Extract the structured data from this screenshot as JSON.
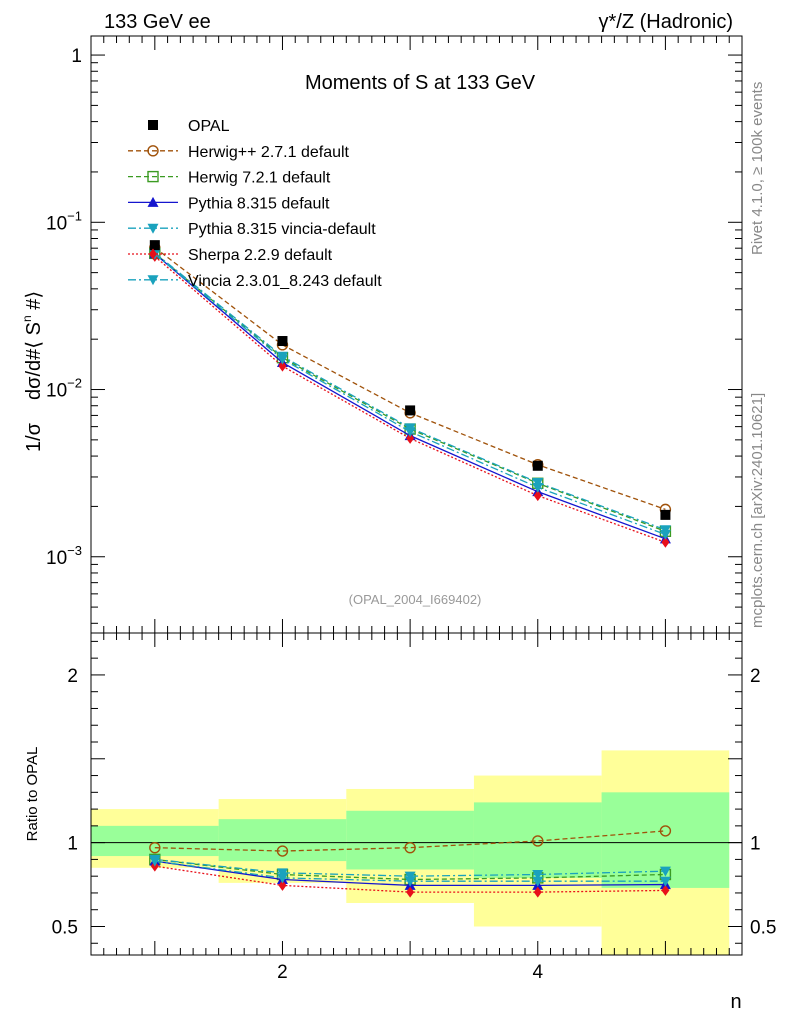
{
  "chart_data": {
    "type": "line",
    "header": {
      "left": "133 GeV ee",
      "right": "γ*/Z (Hadronic)"
    },
    "title": "Moments of S at 133 GeV",
    "side_labels": {
      "rivet": "Rivet 4.1.0, ≥ 100k events",
      "mcplots": "mcplots.cern.ch [arXiv:2401.10621]"
    },
    "analysis_id": "(OPAL_2004_I669402)",
    "main": {
      "ylabel": {
        "frac": "1/σ",
        "rest": "dσ/d#⟨ S",
        "sup": "n",
        "end": " #⟩"
      },
      "yscale": "log",
      "ylim": [
        0.00035,
        1.3
      ],
      "ytick_labels": [
        {
          "v": 1,
          "base": "1",
          "exp": ""
        },
        {
          "v": 0.1,
          "base": "10",
          "exp": "−1"
        },
        {
          "v": 0.01,
          "base": "10",
          "exp": "−2"
        },
        {
          "v": 0.001,
          "base": "10",
          "exp": "−3"
        }
      ]
    },
    "ratio": {
      "ylabel": "Ratio to OPAL",
      "ylim": [
        0.33,
        2.25
      ],
      "ytick_labels": [
        "2",
        "1",
        "0.5"
      ],
      "ytick_values": [
        2,
        1,
        0.5
      ],
      "band_outer": [
        {
          "x0": 0.5,
          "x1": 1.5,
          "lo": 0.85,
          "hi": 1.2
        },
        {
          "x0": 1.5,
          "x1": 2.5,
          "lo": 0.76,
          "hi": 1.26
        },
        {
          "x0": 2.5,
          "x1": 3.5,
          "lo": 0.64,
          "hi": 1.32
        },
        {
          "x0": 3.5,
          "x1": 4.5,
          "lo": 0.5,
          "hi": 1.4
        },
        {
          "x0": 4.5,
          "x1": 5.5,
          "lo": 0.33,
          "hi": 1.55
        }
      ],
      "band_inner": [
        {
          "x0": 0.5,
          "x1": 1.5,
          "lo": 0.92,
          "hi": 1.1
        },
        {
          "x0": 1.5,
          "x1": 2.5,
          "lo": 0.89,
          "hi": 1.14
        },
        {
          "x0": 2.5,
          "x1": 3.5,
          "lo": 0.84,
          "hi": 1.19
        },
        {
          "x0": 3.5,
          "x1": 4.5,
          "lo": 0.79,
          "hi": 1.24
        },
        {
          "x0": 4.5,
          "x1": 5.5,
          "lo": 0.73,
          "hi": 1.3
        }
      ]
    },
    "xlabel": "n",
    "xlim": [
      0.5,
      5.6
    ],
    "xtick_labels": [
      "2",
      "4"
    ],
    "xtick_values": [
      2,
      4
    ],
    "x": [
      1,
      2,
      3,
      4,
      5
    ],
    "series": [
      {
        "name": "OPAL",
        "style": "data",
        "color": "#000000",
        "marker": "square",
        "values": [
          0.073,
          0.0195,
          0.0075,
          0.0035,
          0.00178
        ],
        "ratio": [
          1,
          1,
          1,
          1,
          1
        ]
      },
      {
        "name": "Herwig++ 2.7.1 default",
        "style": "dashed",
        "color": "#a0520a",
        "marker": "circle-open",
        "values": [
          0.0705,
          0.0185,
          0.00725,
          0.00355,
          0.00192
        ],
        "ratio": [
          0.97,
          0.95,
          0.97,
          1.01,
          1.07
        ]
      },
      {
        "name": "Herwig 7.2.1 default",
        "style": "dashed",
        "color": "#3b9b22",
        "marker": "square-open",
        "values": [
          0.0652,
          0.0155,
          0.0058,
          0.00275,
          0.00142
        ],
        "ratio": [
          0.9,
          0.81,
          0.78,
          0.79,
          0.81
        ]
      },
      {
        "name": "Pythia 8.315 default",
        "style": "solid",
        "color": "#1515ce",
        "marker": "triangle-up",
        "values": [
          0.0648,
          0.0145,
          0.0053,
          0.00245,
          0.00128
        ],
        "ratio": [
          0.89,
          0.78,
          0.745,
          0.745,
          0.75
        ]
      },
      {
        "name": "Pythia 8.315 vincia-default",
        "style": "dashdot",
        "color": "#1aa2bd",
        "marker": "triangle-down",
        "values": [
          0.0656,
          0.0158,
          0.0059,
          0.00278,
          0.00145
        ],
        "ratio": [
          0.9,
          0.82,
          0.8,
          0.81,
          0.83
        ]
      },
      {
        "name": "Sherpa 2.2.9 default",
        "style": "dotted",
        "color": "#e8101a",
        "marker": "diamond",
        "values": [
          0.0625,
          0.0138,
          0.0051,
          0.00232,
          0.00122
        ],
        "ratio": [
          0.86,
          0.745,
          0.705,
          0.705,
          0.715
        ]
      },
      {
        "name": "Vincia 2.3.01_8.243 default",
        "style": "dashdot",
        "color": "#1aa2bd",
        "marker": "triangle-down",
        "values": [
          0.0645,
          0.0152,
          0.0056,
          0.0026,
          0.00136
        ],
        "ratio": [
          0.89,
          0.79,
          0.77,
          0.77,
          0.77
        ]
      }
    ]
  }
}
